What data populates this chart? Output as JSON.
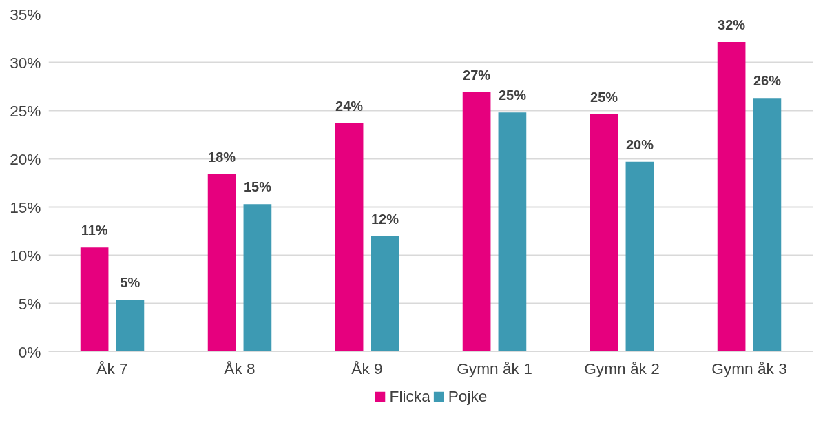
{
  "chart_data": {
    "type": "bar",
    "categories": [
      "Åk 7",
      "Åk 8",
      "Åk 9",
      "Gymn åk 1",
      "Gymn åk 2",
      "Gymn åk 3"
    ],
    "series": [
      {
        "name": "Flicka",
        "color": "#e6007e",
        "values": [
          10.8,
          18.4,
          23.7,
          26.9,
          24.6,
          32.1
        ],
        "value_labels": [
          "11%",
          "18%",
          "24%",
          "27%",
          "25%",
          "32%"
        ]
      },
      {
        "name": "Pojke",
        "color": "#3d9ab3",
        "values": [
          5.4,
          15.3,
          12.0,
          24.8,
          19.7,
          26.3
        ],
        "value_labels": [
          "5%",
          "15%",
          "12%",
          "25%",
          "20%",
          "26%"
        ]
      }
    ],
    "ylim": [
      0,
      35
    ],
    "yticks": [
      {
        "value": 0,
        "label": "0%"
      },
      {
        "value": 5,
        "label": "5%"
      },
      {
        "value": 10,
        "label": "10%"
      },
      {
        "value": 15,
        "label": "15%"
      },
      {
        "value": 20,
        "label": "20%"
      },
      {
        "value": 25,
        "label": "25%"
      },
      {
        "value": 30,
        "label": "30%"
      },
      {
        "value": 35,
        "label": "35%"
      }
    ],
    "grid": "y",
    "legend": "bottom"
  }
}
